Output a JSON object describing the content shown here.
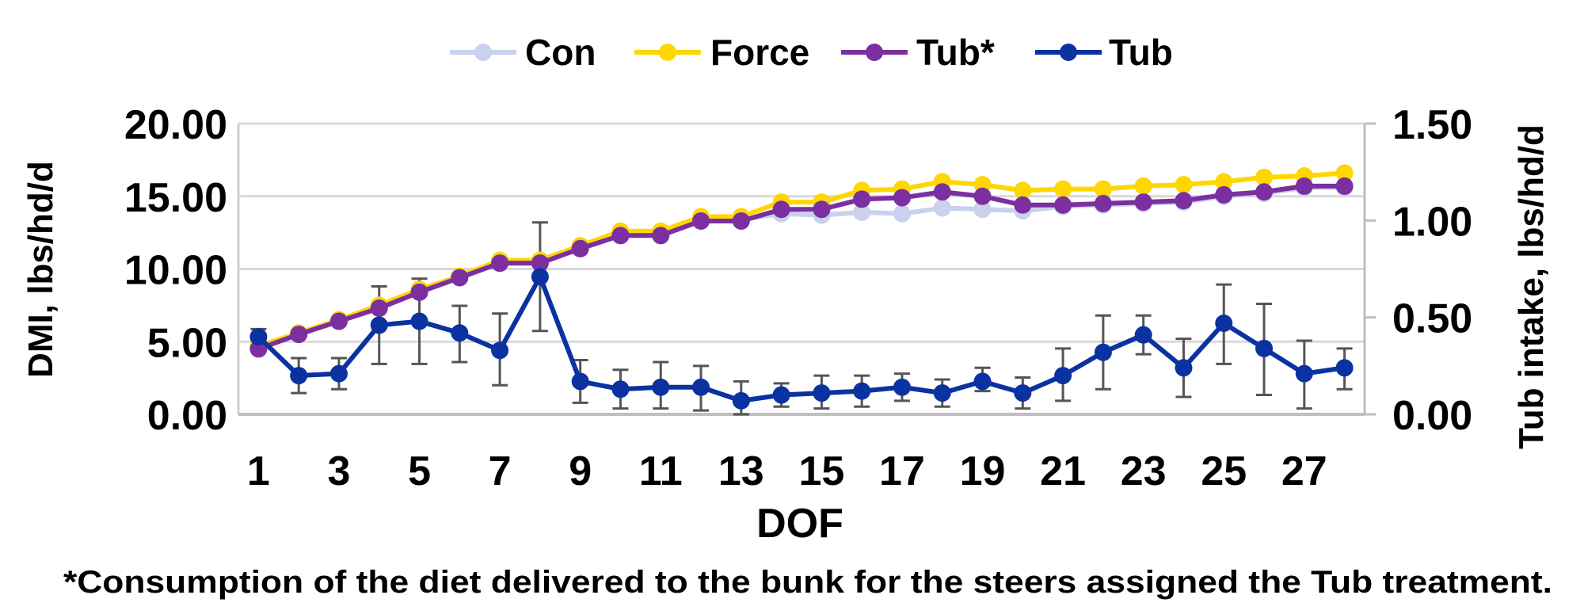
{
  "chart_data": {
    "type": "line",
    "title": "",
    "xlabel": "DOF",
    "ylabel": "DMI, lbs/hd/d",
    "y2label": "Tub intake, lbs/hd/d",
    "ylim": [
      0,
      20
    ],
    "y2lim": [
      0,
      1.5
    ],
    "yticks": [
      "0.00",
      "5.00",
      "10.00",
      "15.00",
      "20.00"
    ],
    "y2ticks": [
      "0.00",
      "0.50",
      "1.00",
      "1.50"
    ],
    "xtick_labels": [
      "1",
      "3",
      "5",
      "7",
      "9",
      "11",
      "13",
      "15",
      "17",
      "19",
      "21",
      "23",
      "25",
      "27"
    ],
    "x": [
      1,
      2,
      3,
      4,
      5,
      6,
      7,
      8,
      9,
      10,
      11,
      12,
      13,
      14,
      15,
      16,
      17,
      18,
      19,
      20,
      21,
      22,
      23,
      24,
      25,
      26,
      27,
      28
    ],
    "grid": true,
    "legend_position": "top",
    "series": [
      {
        "name": "Con",
        "axis": "left",
        "color": "#c9d1ec",
        "values": [
          4.6,
          5.6,
          6.5,
          7.4,
          8.5,
          9.5,
          10.5,
          10.5,
          11.5,
          12.4,
          12.4,
          13.4,
          13.4,
          13.8,
          13.7,
          13.9,
          13.8,
          14.2,
          14.1,
          14.0,
          14.3,
          14.4,
          14.5,
          14.6,
          15.0,
          15.2,
          15.6,
          15.6
        ]
      },
      {
        "name": "Force",
        "axis": "left",
        "color": "#ffd600",
        "values": [
          4.7,
          5.6,
          6.5,
          7.5,
          8.6,
          9.5,
          10.6,
          10.6,
          11.6,
          12.6,
          12.6,
          13.6,
          13.6,
          14.6,
          14.6,
          15.4,
          15.5,
          16.0,
          15.8,
          15.4,
          15.5,
          15.5,
          15.7,
          15.8,
          16.0,
          16.3,
          16.4,
          16.6
        ]
      },
      {
        "name": "Tub*",
        "axis": "left",
        "color": "#7b2fa0",
        "values": [
          4.5,
          5.5,
          6.4,
          7.3,
          8.4,
          9.4,
          10.4,
          10.4,
          11.4,
          12.3,
          12.3,
          13.3,
          13.3,
          14.1,
          14.1,
          14.8,
          14.9,
          15.3,
          15.0,
          14.4,
          14.4,
          14.5,
          14.6,
          14.7,
          15.1,
          15.3,
          15.7,
          15.7
        ]
      },
      {
        "name": "Tub",
        "axis": "right",
        "color": "#0a32a0",
        "values": [
          0.4,
          0.2,
          0.21,
          0.46,
          0.48,
          0.42,
          0.33,
          0.71,
          0.17,
          0.13,
          0.14,
          0.14,
          0.07,
          0.1,
          0.11,
          0.12,
          0.14,
          0.11,
          0.17,
          0.11,
          0.2,
          0.32,
          0.41,
          0.24,
          0.47,
          0.34,
          0.21,
          0.24
        ],
        "error_high": [
          0.44,
          0.29,
          0.29,
          0.66,
          0.7,
          0.56,
          0.52,
          0.99,
          0.28,
          0.23,
          0.27,
          0.25,
          0.17,
          0.16,
          0.2,
          0.2,
          0.21,
          0.18,
          0.24,
          0.19,
          0.34,
          0.51,
          0.51,
          0.39,
          0.67,
          0.57,
          0.38,
          0.34
        ],
        "error_low": [
          0.36,
          0.11,
          0.13,
          0.26,
          0.26,
          0.27,
          0.15,
          0.43,
          0.06,
          0.03,
          0.03,
          0.02,
          0.0,
          0.04,
          0.03,
          0.04,
          0.07,
          0.04,
          0.12,
          0.03,
          0.07,
          0.13,
          0.31,
          0.09,
          0.26,
          0.1,
          0.03,
          0.13
        ]
      }
    ],
    "footnote": "*Consumption of the diet delivered to the bunk for the steers assigned the Tub treatment."
  }
}
